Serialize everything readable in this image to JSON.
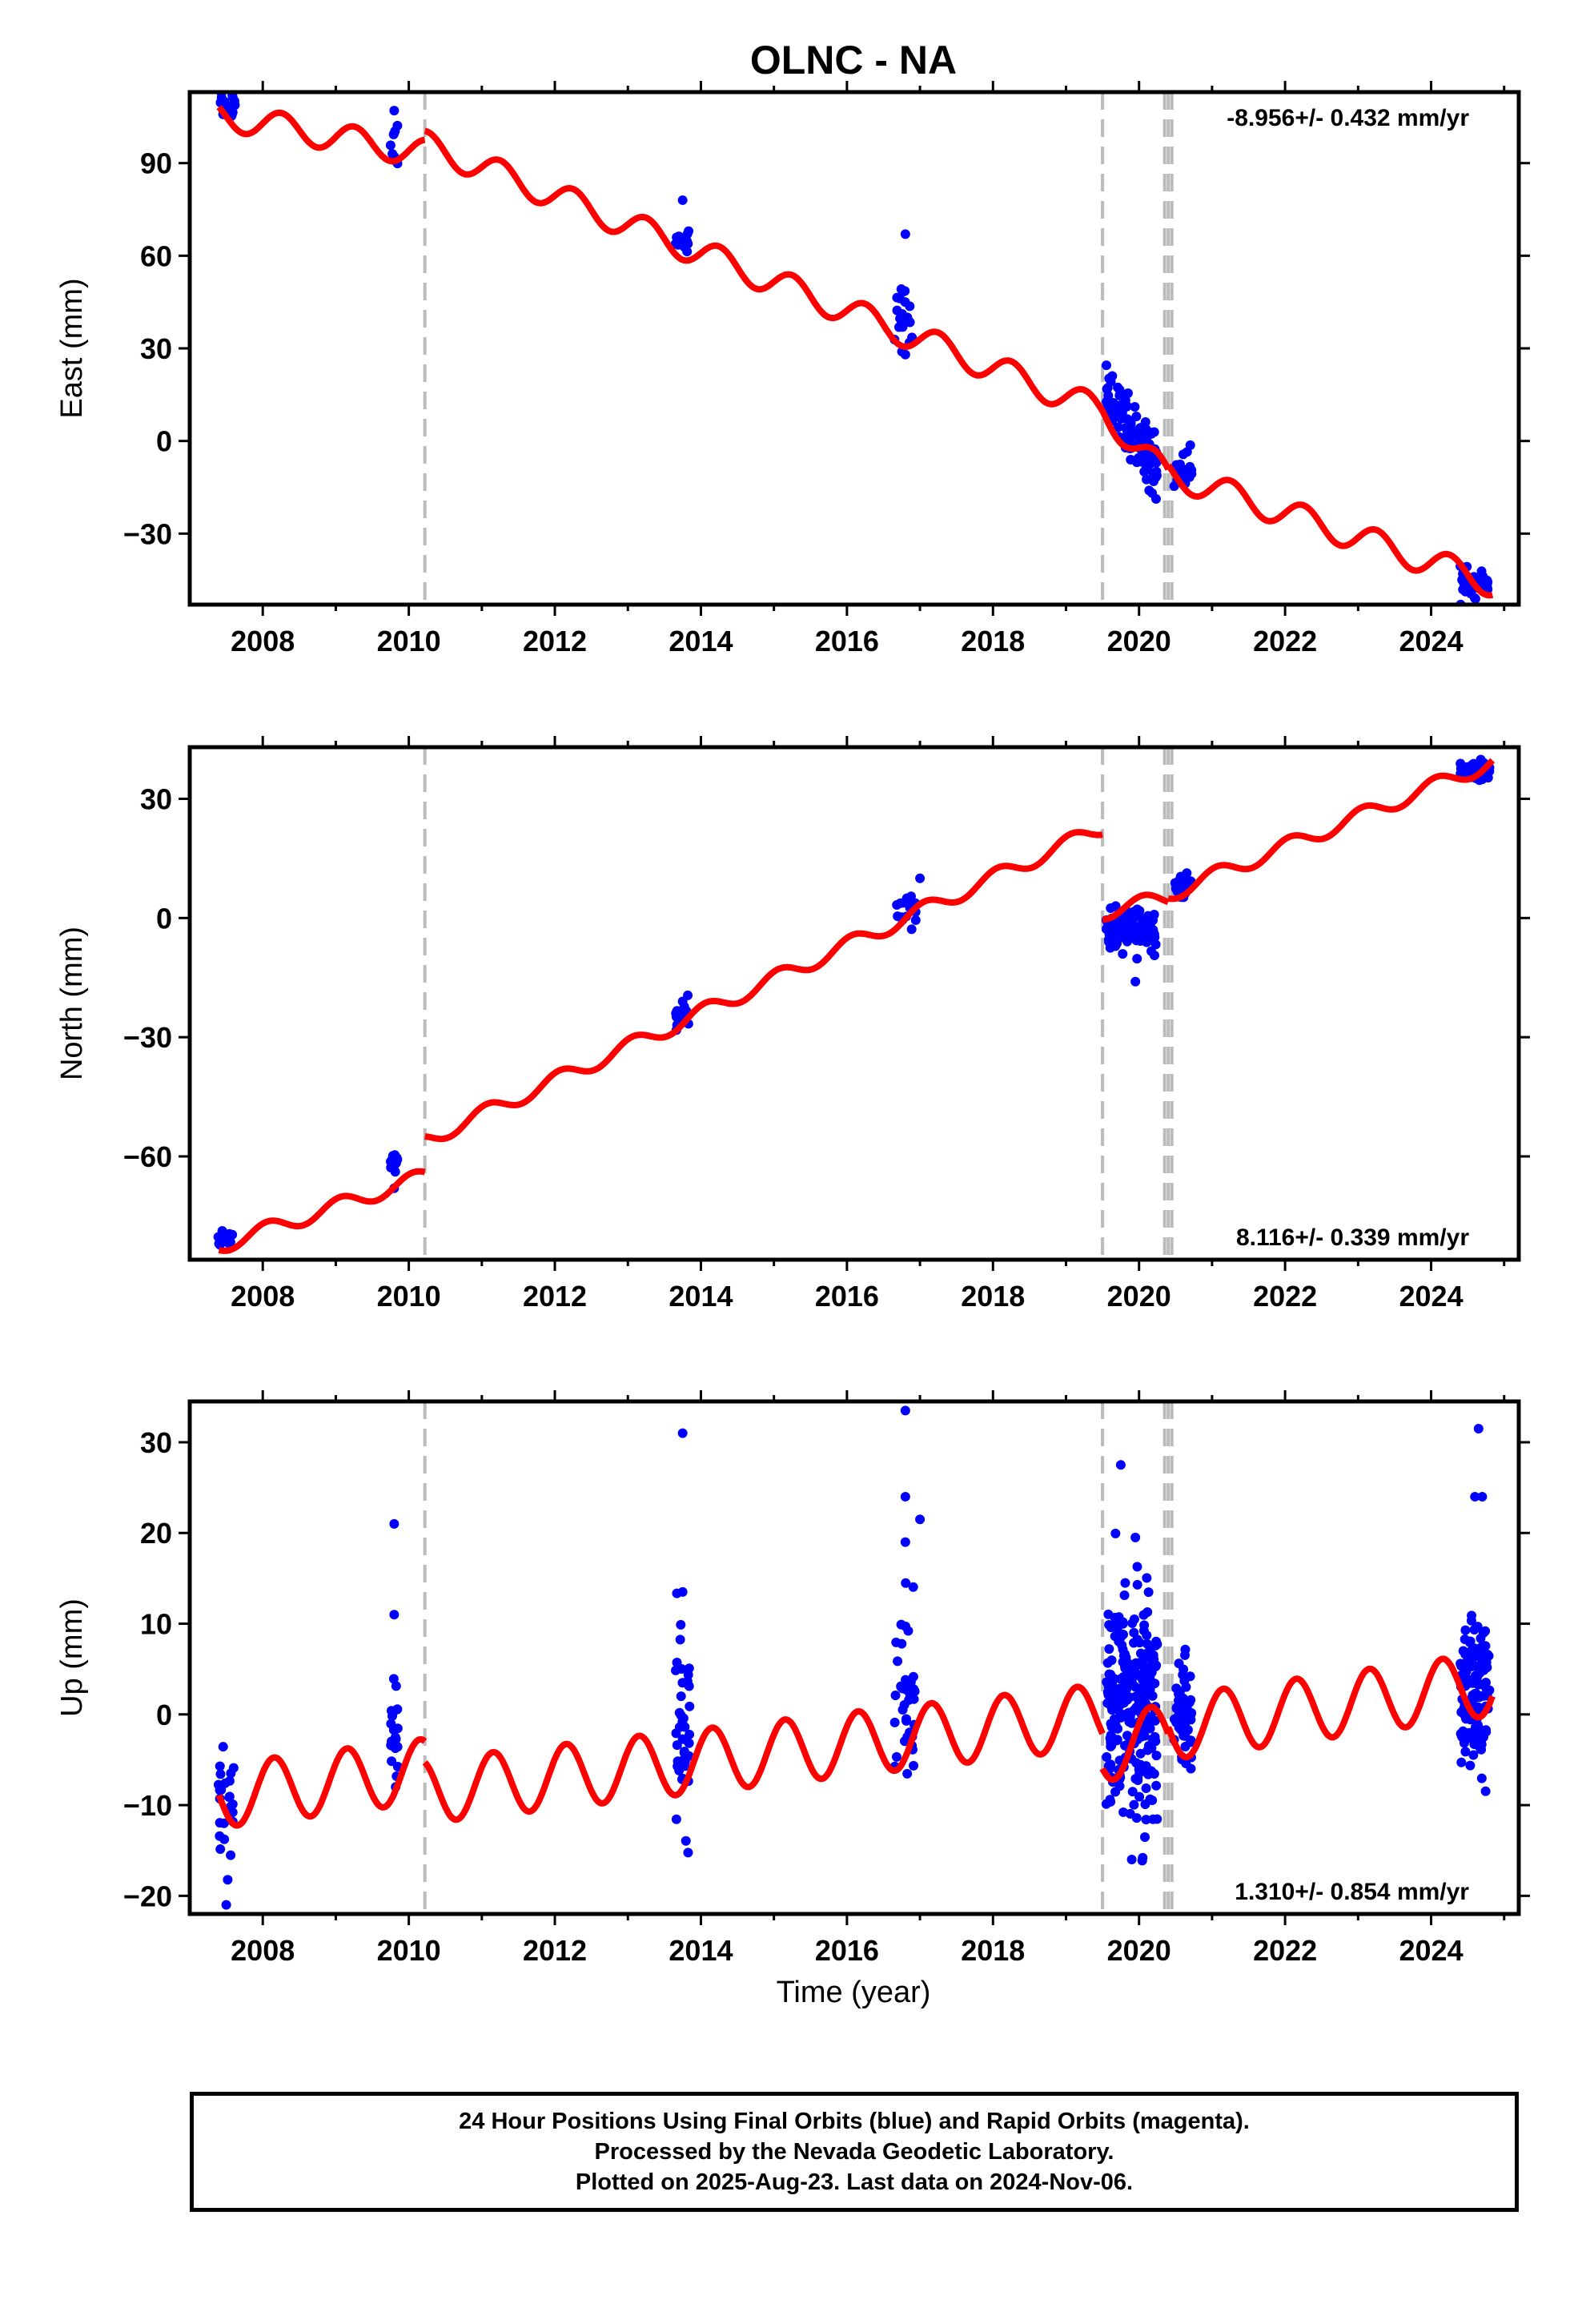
{
  "figure_title": "OLNC - NA",
  "x_axis_label": "Time (year)",
  "footer": {
    "line1": "24 Hour Positions Using Final Orbits (blue) and Rapid Orbits (magenta).",
    "line2": "Processed by the Nevada Geodetic Laboratory.",
    "line3": "Plotted on 2025-Aug-23. Last data on 2024-Nov-06."
  },
  "colors": {
    "observed": "#0000ff",
    "model": "#ff0000",
    "step_lines": "#bbbbbb",
    "frame": "#000000"
  },
  "chart_data": [
    {
      "type": "scatter",
      "name": "East",
      "ylabel": "East (mm)",
      "rate_label": "-8.956+/- 0.432 mm/yr",
      "rate_position": "top-right",
      "xlim": [
        2007.0,
        2025.2
      ],
      "ylim": [
        -53,
        113
      ],
      "xticks": [
        "2008",
        "2010",
        "2012",
        "2014",
        "2016",
        "2018",
        "2020",
        "2022",
        "2024"
      ],
      "yticks": [
        "90",
        "60",
        "30",
        "0",
        "−30"
      ],
      "ytick_values": [
        90,
        60,
        30,
        0,
        -30
      ],
      "step_epochs": [
        2010.22,
        2019.5,
        2020.35,
        2020.4,
        2020.45
      ],
      "observed_clusters": [
        {
          "t": 2007.5,
          "y": 110,
          "n": 18,
          "spread_t": 0.12,
          "spread_y": 3
        },
        {
          "t": 2009.8,
          "y": 97,
          "n": 10,
          "spread_t": 0.05,
          "spread_y": 4
        },
        {
          "t": 2013.75,
          "y": 65,
          "n": 12,
          "spread_t": 0.1,
          "spread_y": 3
        },
        {
          "t": 2016.8,
          "y": 41,
          "n": 22,
          "spread_t": 0.15,
          "spread_y": 5
        },
        {
          "t": 2019.9,
          "y": 3,
          "n": 120,
          "spread_t": 0.35,
          "spread_y": 5,
          "drift": -22
        },
        {
          "t": 2020.6,
          "y": -10,
          "n": 30,
          "spread_t": 0.12,
          "spread_y": 3
        },
        {
          "t": 2024.6,
          "y": -46,
          "n": 50,
          "spread_t": 0.2,
          "spread_y": 2
        }
      ],
      "observed_outliers": [
        [
          2009.8,
          107
        ],
        [
          2013.75,
          78
        ],
        [
          2016.8,
          67
        ],
        [
          2016.8,
          28
        ]
      ],
      "model": {
        "segments": [
          {
            "t0": 2007.4,
            "t1": 2010.22,
            "start": 105.5,
            "rate": -4.4
          },
          {
            "t0": 2010.22,
            "t1": 2019.5,
            "start": 96.0,
            "rate": -9.3
          },
          {
            "t0": 2019.5,
            "t1": 2020.4,
            "start": 9.8,
            "rate": -24.0
          },
          {
            "t0": 2020.4,
            "t1": 2024.85,
            "start": -10.5,
            "rate": -8.0
          }
        ],
        "annual_amplitude": 4.5,
        "annual_phase": 0.0
      }
    },
    {
      "type": "scatter",
      "name": "North",
      "ylabel": "North (mm)",
      "rate_label": "8.116+/- 0.339 mm/yr",
      "rate_position": "bottom-right",
      "xlim": [
        2007.0,
        2025.2
      ],
      "ylim": [
        -86,
        43
      ],
      "xticks": [
        "2008",
        "2010",
        "2012",
        "2014",
        "2016",
        "2018",
        "2020",
        "2022",
        "2024"
      ],
      "yticks": [
        "30",
        "0",
        "−30",
        "−60"
      ],
      "ytick_values": [
        30,
        0,
        -30,
        -60
      ],
      "step_epochs": [
        2010.22,
        2019.5,
        2020.35,
        2020.4,
        2020.45
      ],
      "observed_clusters": [
        {
          "t": 2007.5,
          "y": -81,
          "n": 16,
          "spread_t": 0.12,
          "spread_y": 1
        },
        {
          "t": 2009.8,
          "y": -62,
          "n": 10,
          "spread_t": 0.05,
          "spread_y": 2
        },
        {
          "t": 2013.75,
          "y": -25,
          "n": 12,
          "spread_t": 0.1,
          "spread_y": 2
        },
        {
          "t": 2016.8,
          "y": 2,
          "n": 18,
          "spread_t": 0.15,
          "spread_y": 2
        },
        {
          "t": 2019.9,
          "y": -3,
          "n": 110,
          "spread_t": 0.35,
          "spread_y": 2.5
        },
        {
          "t": 2020.6,
          "y": 8,
          "n": 25,
          "spread_t": 0.12,
          "spread_y": 1.5
        },
        {
          "t": 2024.6,
          "y": 37,
          "n": 50,
          "spread_t": 0.2,
          "spread_y": 1.5
        }
      ],
      "observed_outliers": [
        [
          2009.8,
          -68
        ],
        [
          2013.75,
          -21
        ],
        [
          2017.0,
          10
        ],
        [
          2019.95,
          -16
        ]
      ],
      "model": {
        "segments": [
          {
            "t0": 2007.4,
            "t1": 2010.22,
            "start": -82.5,
            "rate": 6.2
          },
          {
            "t0": 2010.22,
            "t1": 2019.5,
            "start": -56.0,
            "rate": 8.5
          },
          {
            "t0": 2019.5,
            "t1": 2020.4,
            "start": 1.5,
            "rate": 4.0
          },
          {
            "t0": 2020.4,
            "t1": 2024.85,
            "start": 6.0,
            "rate": 7.5
          }
        ],
        "annual_amplitude": 2.0,
        "annual_phase": 1.2
      }
    },
    {
      "type": "scatter",
      "name": "Up",
      "ylabel": "Up (mm)",
      "rate_label": "1.310+/- 0.854 mm/yr",
      "rate_position": "bottom-right",
      "xlim": [
        2007.0,
        2025.2
      ],
      "ylim": [
        -22,
        34.5
      ],
      "xticks": [
        "2008",
        "2010",
        "2012",
        "2014",
        "2016",
        "2018",
        "2020",
        "2022",
        "2024"
      ],
      "yticks": [
        "30",
        "20",
        "10",
        "0",
        "−10",
        "−20"
      ],
      "ytick_values": [
        30,
        20,
        10,
        0,
        -10,
        -20
      ],
      "step_epochs": [
        2010.22,
        2019.5,
        2020.35,
        2020.4,
        2020.45
      ],
      "observed_clusters": [
        {
          "t": 2007.5,
          "y": -12,
          "n": 25,
          "spread_t": 0.12,
          "spread_y": 4
        },
        {
          "t": 2009.8,
          "y": -2,
          "n": 22,
          "spread_t": 0.05,
          "spread_y": 4
        },
        {
          "t": 2013.75,
          "y": -2,
          "n": 40,
          "spread_t": 0.1,
          "spread_y": 5
        },
        {
          "t": 2016.8,
          "y": 2,
          "n": 40,
          "spread_t": 0.15,
          "spread_y": 5
        },
        {
          "t": 2019.9,
          "y": 1,
          "n": 260,
          "spread_t": 0.35,
          "spread_y": 6
        },
        {
          "t": 2020.6,
          "y": 0,
          "n": 60,
          "spread_t": 0.12,
          "spread_y": 3
        },
        {
          "t": 2024.6,
          "y": 2,
          "n": 150,
          "spread_t": 0.2,
          "spread_y": 4
        }
      ],
      "observed_outliers": [
        [
          2007.5,
          -21
        ],
        [
          2009.8,
          21
        ],
        [
          2009.8,
          11
        ],
        [
          2013.75,
          31
        ],
        [
          2013.75,
          13.5
        ],
        [
          2016.8,
          33.5
        ],
        [
          2016.8,
          24
        ],
        [
          2016.8,
          19
        ],
        [
          2017.0,
          21.5
        ],
        [
          2019.75,
          27.5
        ],
        [
          2019.95,
          19.5
        ],
        [
          2019.9,
          -16
        ],
        [
          2020.05,
          -15.8
        ],
        [
          2024.65,
          31.5
        ],
        [
          2024.7,
          24
        ],
        [
          2024.6,
          24
        ]
      ],
      "model": {
        "segments": [
          {
            "t0": 2007.4,
            "t1": 2010.22,
            "start": -9.0,
            "rate": 1.0
          },
          {
            "t0": 2010.22,
            "t1": 2019.5,
            "start": -8.5,
            "rate": 0.9
          },
          {
            "t0": 2019.5,
            "t1": 2020.4,
            "start": -4.0,
            "rate": 2.0
          },
          {
            "t0": 2020.4,
            "t1": 2024.85,
            "start": -1.5,
            "rate": 1.1
          }
        ],
        "annual_amplitude": 3.5,
        "annual_phase": 0.6
      }
    }
  ]
}
